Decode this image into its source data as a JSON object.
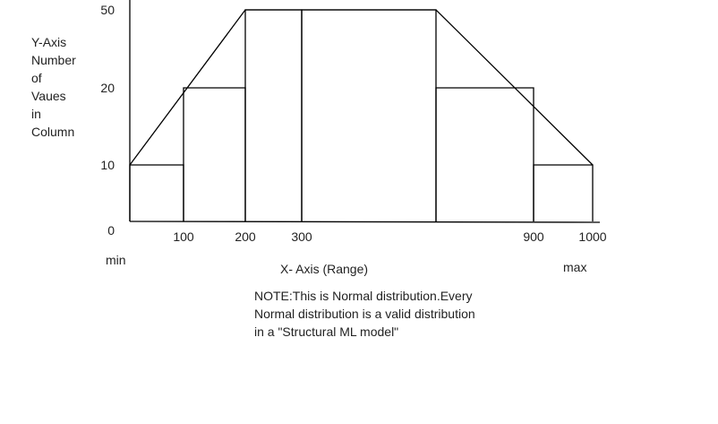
{
  "chart_data": {
    "type": "bar",
    "ylabel_lines": [
      "Y-Axis",
      "Number",
      "of",
      "Vaues",
      "in",
      "Column"
    ],
    "xlabel": "X- Axis (Range)",
    "x_ticks": [
      {
        "value": 100,
        "label": "100"
      },
      {
        "value": 200,
        "label": "200"
      },
      {
        "value": 300,
        "label": "300"
      },
      {
        "value": 900,
        "label": "900"
      },
      {
        "value": 1000,
        "label": "1000"
      }
    ],
    "y_ticks": [
      {
        "value": 0,
        "label": "0"
      },
      {
        "value": 10,
        "label": "10"
      },
      {
        "value": 20,
        "label": "20"
      },
      {
        "value": 50,
        "label": "50"
      }
    ],
    "x_min_label": "min",
    "x_max_label": "max",
    "bins": [
      {
        "x0": 0,
        "x1": 100,
        "value": 10
      },
      {
        "x0": 100,
        "x1": 200,
        "value": 20
      },
      {
        "x0": 200,
        "x1": 300,
        "value": 50
      },
      {
        "x0": 300,
        "x1": 650,
        "value": 50
      },
      {
        "x0": 650,
        "x1": 900,
        "value": 20
      },
      {
        "x0": 900,
        "x1": 1000,
        "value": 10
      }
    ],
    "outline": [
      {
        "x": 0,
        "y": 10
      },
      {
        "x": 200,
        "y": 50
      },
      {
        "x": 650,
        "y": 50
      },
      {
        "x": 1000,
        "y": 10
      }
    ]
  },
  "note": {
    "lines": [
      "NOTE:This is Normal distribution.Every",
      "Normal distribution is a valid distribution",
      "in a \"Structural ML model\""
    ]
  }
}
